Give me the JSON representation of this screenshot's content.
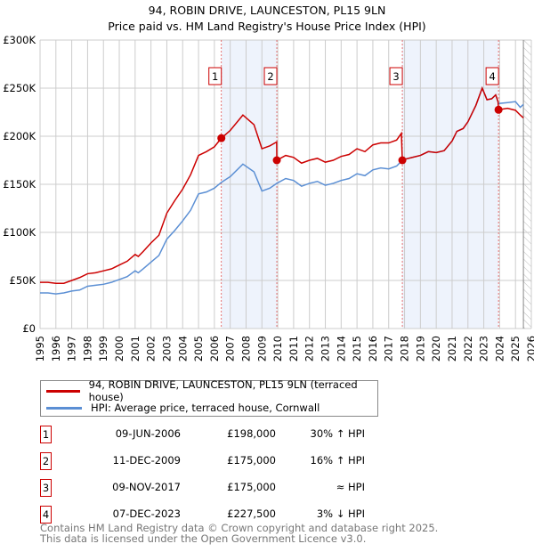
{
  "chart_data": {
    "type": "line",
    "title": "94, ROBIN DRIVE, LAUNCESTON, PL15 9LN",
    "subtitle": "Price paid vs. HM Land Registry's House Price Index (HPI)",
    "xlim": [
      1995,
      2026
    ],
    "ylim": [
      0,
      300000
    ],
    "yticks": [
      {
        "v": 0,
        "label": "£0"
      },
      {
        "v": 50000,
        "label": "£50K"
      },
      {
        "v": 100000,
        "label": "£100K"
      },
      {
        "v": 150000,
        "label": "£150K"
      },
      {
        "v": 200000,
        "label": "£200K"
      },
      {
        "v": 250000,
        "label": "£250K"
      },
      {
        "v": 300000,
        "label": "£300K"
      }
    ],
    "xticks": [
      "1995",
      "1996",
      "1997",
      "1998",
      "1999",
      "2000",
      "2001",
      "2002",
      "2003",
      "2004",
      "2005",
      "2006",
      "2007",
      "2008",
      "2009",
      "2010",
      "2011",
      "2012",
      "2013",
      "2014",
      "2015",
      "2016",
      "2017",
      "2018",
      "2019",
      "2020",
      "2021",
      "2022",
      "2023",
      "2024",
      "2025",
      "2026"
    ],
    "grid": true,
    "forecast_hatch_from": 2025.5,
    "colors": {
      "property": "#cc0000",
      "hpi": "#5b8fd4",
      "shade": "#eef3fc",
      "marker_box": "#cc0000"
    },
    "series": [
      {
        "name": "94, ROBIN DRIVE, LAUNCESTON, PL15 9LN (terraced house)",
        "points": [
          [
            1995,
            48
          ],
          [
            1995.5,
            48
          ],
          [
            1996,
            47
          ],
          [
            1996.5,
            47
          ],
          [
            1997,
            50
          ],
          [
            1997.5,
            53
          ],
          [
            1998,
            57
          ],
          [
            1998.5,
            58
          ],
          [
            1999,
            60
          ],
          [
            1999.5,
            62
          ],
          [
            2000,
            66
          ],
          [
            2000.5,
            70
          ],
          [
            2001,
            77
          ],
          [
            2001.2,
            75
          ],
          [
            2001.5,
            80
          ],
          [
            2002,
            89
          ],
          [
            2002.5,
            97
          ],
          [
            2003,
            120
          ],
          [
            2003.5,
            133
          ],
          [
            2004,
            145
          ],
          [
            2004.5,
            160
          ],
          [
            2005,
            180
          ],
          [
            2005.5,
            184
          ],
          [
            2006,
            189
          ],
          [
            2006.44,
            198
          ],
          [
            2007,
            206
          ],
          [
            2007.8,
            222
          ],
          [
            2008.5,
            212
          ],
          [
            2009,
            187
          ],
          [
            2009.5,
            190
          ],
          [
            2009.93,
            194
          ],
          [
            2009.94,
            175
          ],
          [
            2010.5,
            180
          ],
          [
            2011,
            178
          ],
          [
            2011.5,
            172
          ],
          [
            2012,
            175
          ],
          [
            2012.5,
            177
          ],
          [
            2013,
            173
          ],
          [
            2013.5,
            175
          ],
          [
            2014,
            179
          ],
          [
            2014.5,
            181
          ],
          [
            2015,
            187
          ],
          [
            2015.5,
            184
          ],
          [
            2016,
            191
          ],
          [
            2016.5,
            193
          ],
          [
            2017,
            193
          ],
          [
            2017.5,
            196
          ],
          [
            2017.8,
            203
          ],
          [
            2017.86,
            175
          ],
          [
            2018,
            176
          ],
          [
            2018.5,
            178
          ],
          [
            2019,
            180
          ],
          [
            2019.5,
            184
          ],
          [
            2020,
            183
          ],
          [
            2020.5,
            185
          ],
          [
            2021,
            195
          ],
          [
            2021.3,
            205
          ],
          [
            2021.7,
            208
          ],
          [
            2022,
            215
          ],
          [
            2022.5,
            232
          ],
          [
            2022.9,
            250
          ],
          [
            2023.2,
            238
          ],
          [
            2023.5,
            239
          ],
          [
            2023.75,
            243
          ],
          [
            2023.9,
            236
          ],
          [
            2023.93,
            227.5
          ],
          [
            2024.5,
            229
          ],
          [
            2025,
            227
          ],
          [
            2025.3,
            222
          ],
          [
            2025.5,
            219
          ]
        ]
      },
      {
        "name": "HPI: Average price, terraced house, Cornwall",
        "points": [
          [
            1995,
            37
          ],
          [
            1995.5,
            37
          ],
          [
            1996,
            36
          ],
          [
            1996.5,
            37
          ],
          [
            1997,
            39
          ],
          [
            1997.5,
            40
          ],
          [
            1998,
            44
          ],
          [
            1998.5,
            45
          ],
          [
            1999,
            46
          ],
          [
            1999.5,
            48
          ],
          [
            2000,
            51
          ],
          [
            2000.5,
            54
          ],
          [
            2001,
            60
          ],
          [
            2001.2,
            58
          ],
          [
            2001.5,
            62
          ],
          [
            2002,
            69
          ],
          [
            2002.5,
            76
          ],
          [
            2003,
            93
          ],
          [
            2003.5,
            102
          ],
          [
            2004,
            112
          ],
          [
            2004.5,
            123
          ],
          [
            2005,
            140
          ],
          [
            2005.5,
            142
          ],
          [
            2006,
            146
          ],
          [
            2006.44,
            152
          ],
          [
            2007,
            158
          ],
          [
            2007.8,
            171
          ],
          [
            2008.5,
            163
          ],
          [
            2009,
            143
          ],
          [
            2009.5,
            146
          ],
          [
            2009.94,
            151
          ],
          [
            2010.5,
            156
          ],
          [
            2011,
            154
          ],
          [
            2011.5,
            148
          ],
          [
            2012,
            151
          ],
          [
            2012.5,
            153
          ],
          [
            2013,
            149
          ],
          [
            2013.5,
            151
          ],
          [
            2014,
            154
          ],
          [
            2014.5,
            156
          ],
          [
            2015,
            161
          ],
          [
            2015.5,
            159
          ],
          [
            2016,
            165
          ],
          [
            2016.5,
            167
          ],
          [
            2017,
            166
          ],
          [
            2017.5,
            169
          ],
          [
            2017.86,
            175
          ],
          [
            2018,
            176
          ],
          [
            2018.5,
            178
          ],
          [
            2019,
            180
          ],
          [
            2019.5,
            184
          ],
          [
            2020,
            183
          ],
          [
            2020.5,
            185
          ],
          [
            2021,
            195
          ],
          [
            2021.3,
            205
          ],
          [
            2021.7,
            208
          ],
          [
            2022,
            215
          ],
          [
            2022.5,
            232
          ],
          [
            2022.9,
            250
          ],
          [
            2023.2,
            238
          ],
          [
            2023.5,
            239
          ],
          [
            2023.75,
            243
          ],
          [
            2023.93,
            234
          ],
          [
            2024.5,
            235
          ],
          [
            2025,
            236
          ],
          [
            2025.3,
            230
          ],
          [
            2025.5,
            233
          ]
        ]
      }
    ],
    "sales": [
      {
        "n": "1",
        "x": 2006.44,
        "y": 198000,
        "date": "09-JUN-2006",
        "price": "£198,000",
        "hpi": "30% ↑ HPI"
      },
      {
        "n": "2",
        "x": 2009.94,
        "y": 175000,
        "date": "11-DEC-2009",
        "price": "£175,000",
        "hpi": "16% ↑ HPI"
      },
      {
        "n": "3",
        "x": 2017.86,
        "y": 175000,
        "date": "09-NOV-2017",
        "price": "£175,000",
        "hpi": "≈ HPI"
      },
      {
        "n": "4",
        "x": 2023.93,
        "y": 227500,
        "date": "07-DEC-2023",
        "price": "£227,500",
        "hpi": "3% ↓ HPI"
      }
    ],
    "shaded_ranges": [
      [
        2006.44,
        2009.94
      ],
      [
        2017.86,
        2023.93
      ]
    ]
  },
  "legend": {
    "property": "94, ROBIN DRIVE, LAUNCESTON, PL15 9LN (terraced house)",
    "hpi": "HPI: Average price, terraced house, Cornwall"
  },
  "footer": {
    "line1": "Contains HM Land Registry data © Crown copyright and database right 2025.",
    "line2": "This data is licensed under the Open Government Licence v3.0."
  }
}
